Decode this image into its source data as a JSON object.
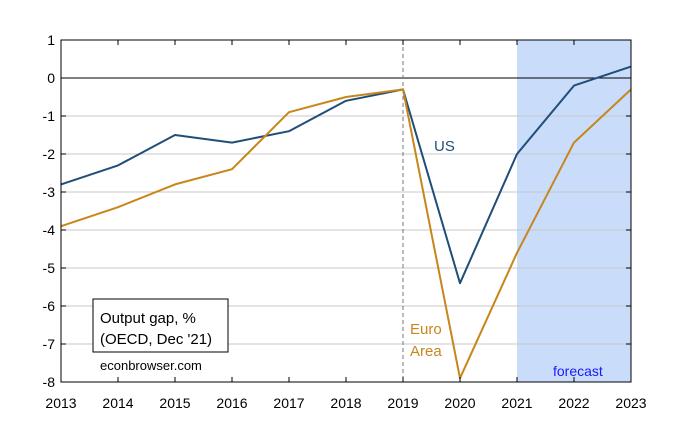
{
  "chart_data": {
    "type": "line",
    "x": [
      2013,
      2014,
      2015,
      2016,
      2017,
      2018,
      2019,
      2020,
      2021,
      2022,
      2023
    ],
    "series": [
      {
        "name": "US",
        "color": "#1f4e79",
        "values": [
          -2.8,
          -2.3,
          -1.5,
          -1.7,
          -1.4,
          -0.6,
          -0.3,
          -5.4,
          -2.0,
          -0.2,
          0.3
        ]
      },
      {
        "name": "Euro Area",
        "color": "#c8861a",
        "values": [
          -3.9,
          -3.4,
          -2.8,
          -2.4,
          -0.9,
          -0.5,
          -0.3,
          -7.9,
          -4.6,
          -1.7,
          -0.3
        ]
      }
    ],
    "ylim": [
      -8,
      1
    ],
    "yticks": [
      1,
      0,
      -1,
      -2,
      -3,
      -4,
      -5,
      -6,
      -7,
      -8
    ],
    "xlim": [
      2013,
      2023
    ],
    "xticks": [
      2013,
      2014,
      2015,
      2016,
      2017,
      2018,
      2019,
      2020,
      2021,
      2022,
      2023
    ],
    "forecast_start": 2021,
    "forecast_color": "#c9dcfa",
    "vline_x": 2019,
    "annotations": {
      "us_label": "US",
      "euro_label_line1": "Euro",
      "euro_label_line2": "Area",
      "forecast_label": "forecast"
    },
    "legend_box": {
      "line1": "Output gap, %",
      "line2": "(OECD, Dec '21)"
    },
    "credit": "econbrowser.com"
  }
}
